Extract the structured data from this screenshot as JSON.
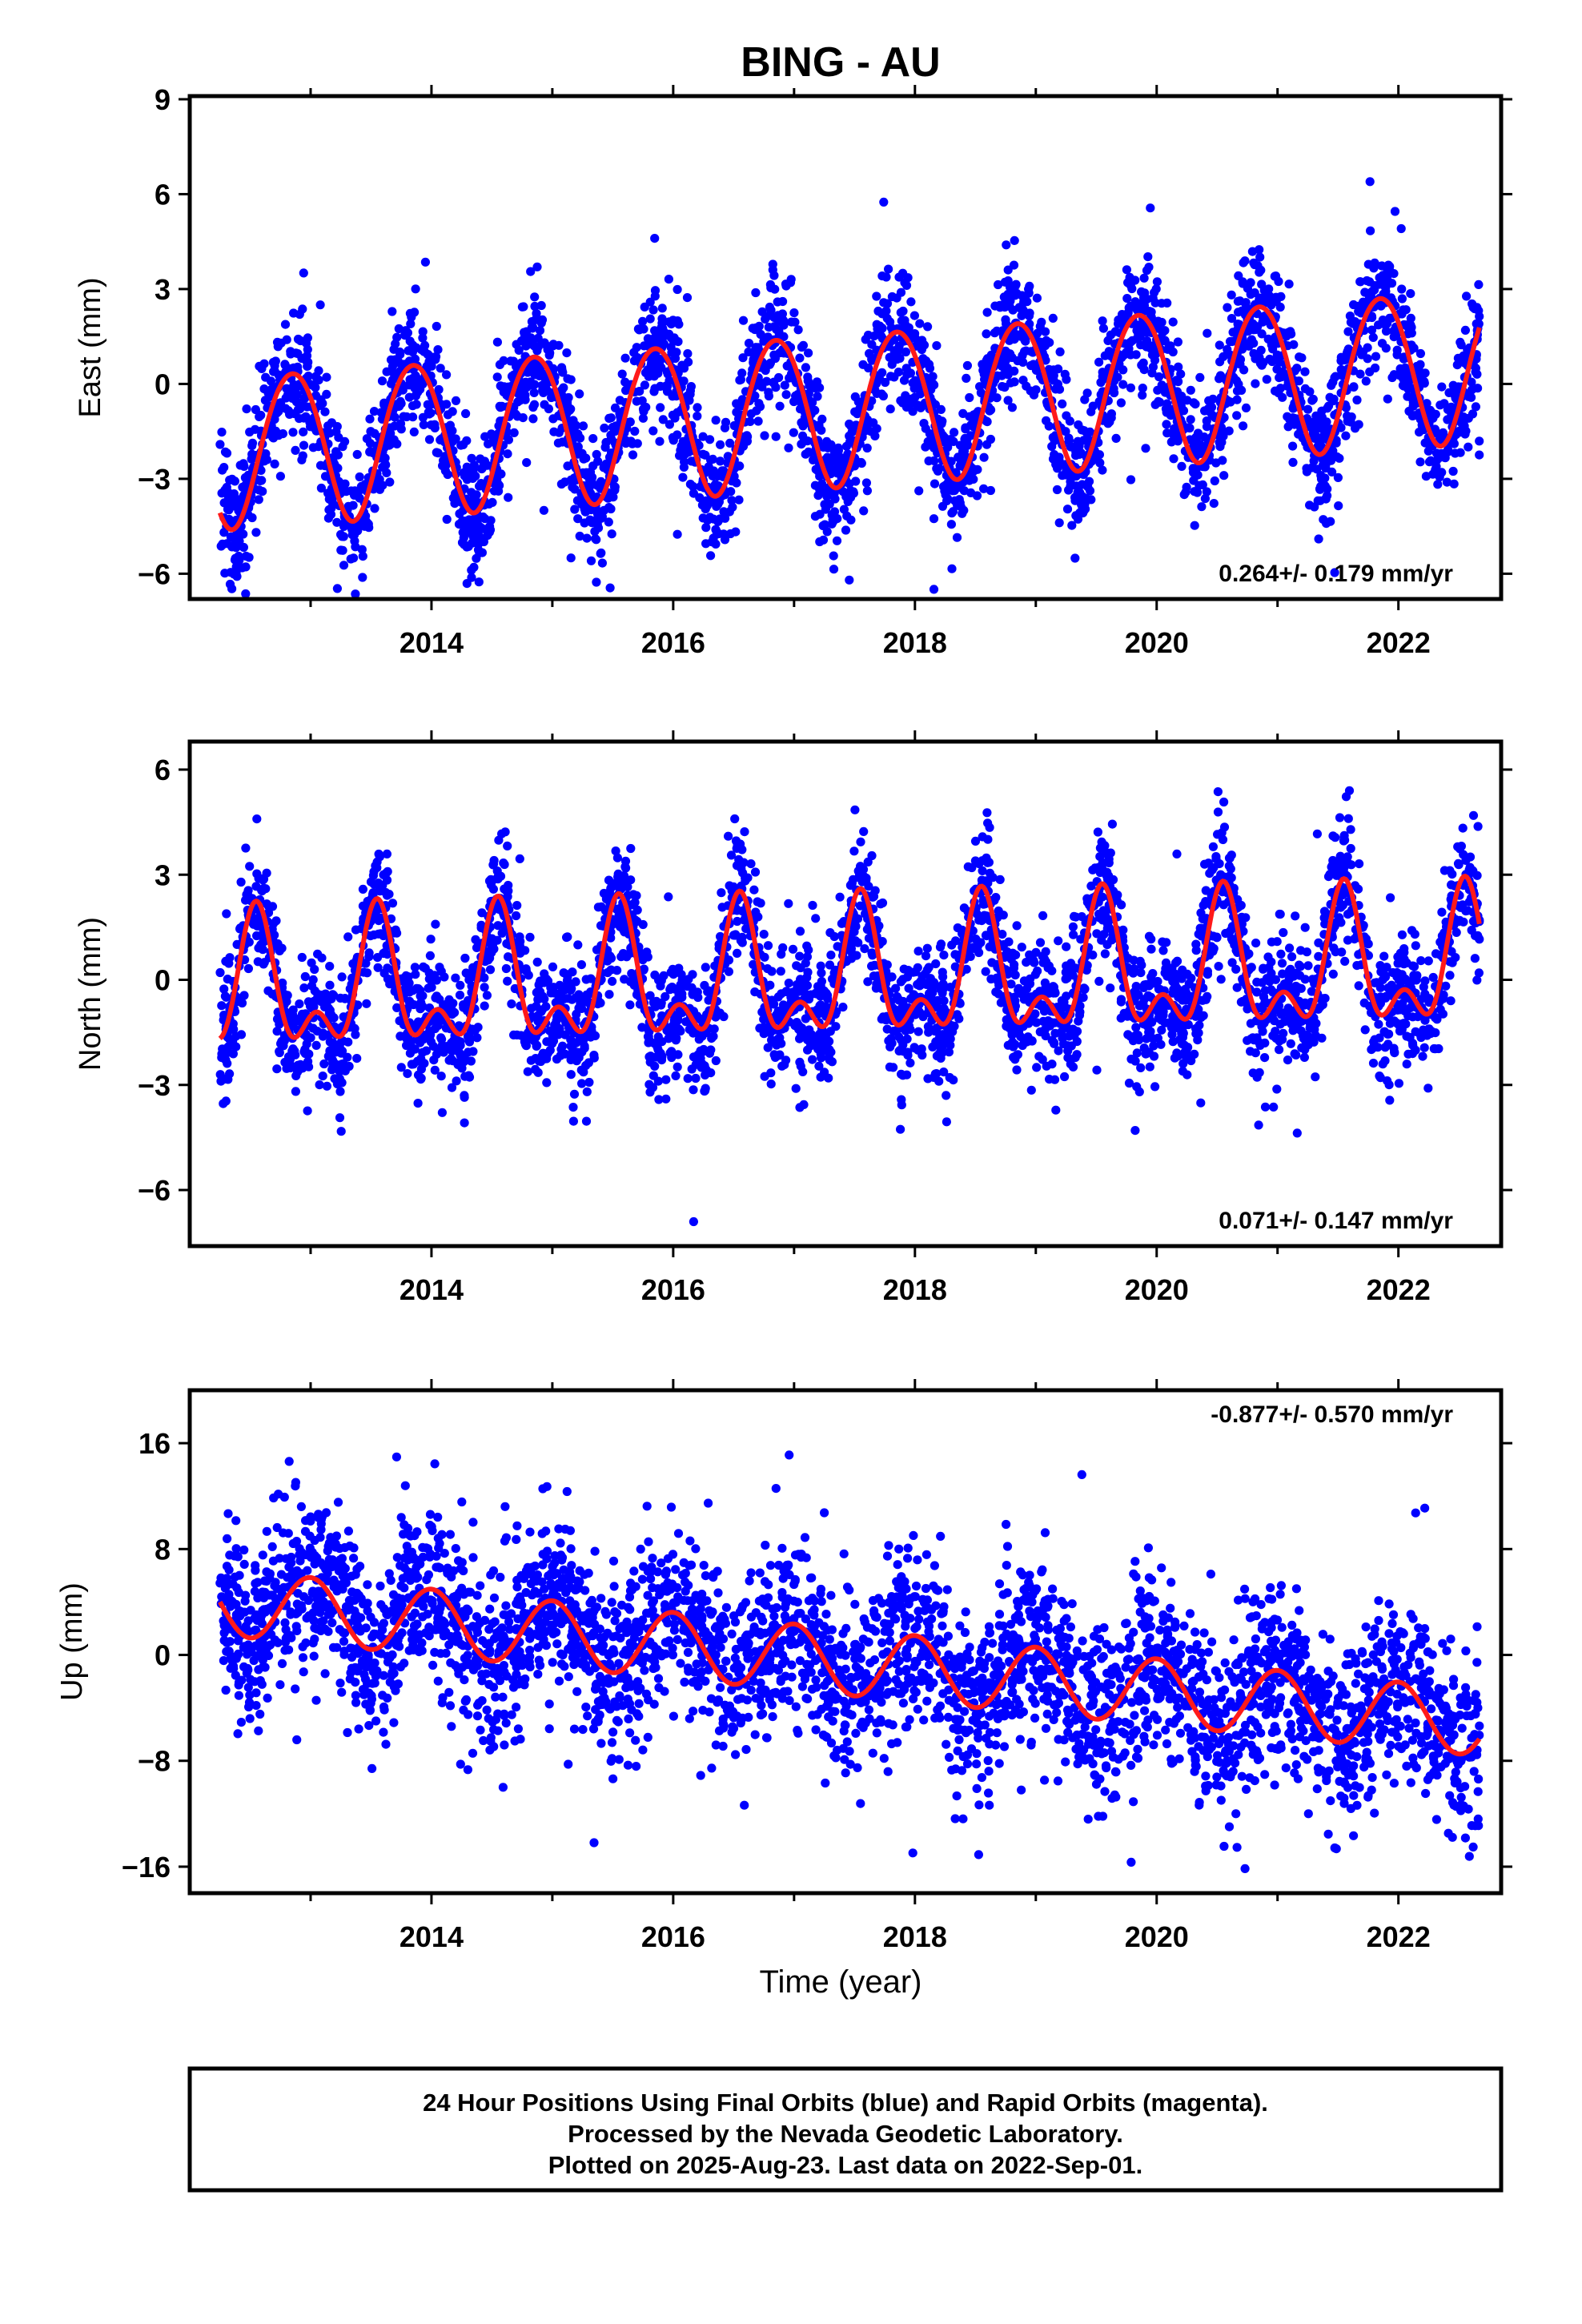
{
  "title": "BING - AU",
  "colors": {
    "points": "#0000ff",
    "fit": "#ff1a1a",
    "frame": "#000000"
  },
  "x_label": "Time (year)",
  "footer": [
    "24 Hour Positions Using Final Orbits (blue) and Rapid Orbits (magenta).",
    "Processed by the Nevada Geodetic Laboratory.",
    "Plotted on 2025-Aug-23. Last data on 2022-Sep-01."
  ],
  "chart_data": [
    {
      "type": "scatter",
      "ylabel": "East (mm)",
      "rate_text": "0.264+/- 0.179 mm/yr",
      "xlim": [
        2012.0,
        2022.85
      ],
      "ylim": [
        -6.8,
        9.1
      ],
      "yticks": [
        -6,
        -3,
        0,
        3,
        6,
        9
      ],
      "xticks": [
        2014,
        2016,
        2018,
        2020,
        2022
      ],
      "fit": {
        "offset": -0.7,
        "trend": 0.264,
        "t0": 2017.5,
        "annual_amp": 2.4,
        "annual_peak": 2012.85,
        "semi_amp": 0.15,
        "semi_peak": 2013.1
      },
      "point_count": 3500,
      "noise_sd": 1.0,
      "x_range": [
        2012.25,
        2022.67
      ]
    },
    {
      "type": "scatter",
      "ylabel": "North (mm)",
      "rate_text": "0.071+/- 0.147 mm/yr",
      "xlim": [
        2012.0,
        2022.85
      ],
      "ylim": [
        -7.6,
        6.8
      ],
      "yticks": [
        -6,
        -3,
        0,
        3,
        6
      ],
      "xticks": [
        2014,
        2016,
        2018,
        2020,
        2022
      ],
      "fit": {
        "offset": 0.0,
        "trend": 0.071,
        "t0": 2017.5,
        "annual_amp": 1.6,
        "annual_peak": 2012.55,
        "semi_amp": 1.0,
        "semi_peak": 2012.55
      },
      "point_count": 3500,
      "noise_sd": 0.9,
      "x_range": [
        2012.25,
        2022.67
      ]
    },
    {
      "type": "scatter",
      "ylabel": "Up (mm)",
      "rate_text": "-0.877+/- 0.570 mm/yr",
      "xlim": [
        2012.0,
        2022.85
      ],
      "ylim": [
        -18,
        20
      ],
      "yticks": [
        -16,
        -8,
        0,
        8,
        16
      ],
      "xticks": [
        2014,
        2016,
        2018,
        2020,
        2022
      ],
      "fit": {
        "offset": -0.6,
        "trend": -0.877,
        "t0": 2017.5,
        "annual_amp": 2.5,
        "annual_peak": 2013.0,
        "semi_amp": 0.0,
        "semi_peak": 2013.0
      },
      "point_count": 3500,
      "noise_sd": 3.4,
      "x_range": [
        2012.25,
        2022.67
      ]
    }
  ]
}
